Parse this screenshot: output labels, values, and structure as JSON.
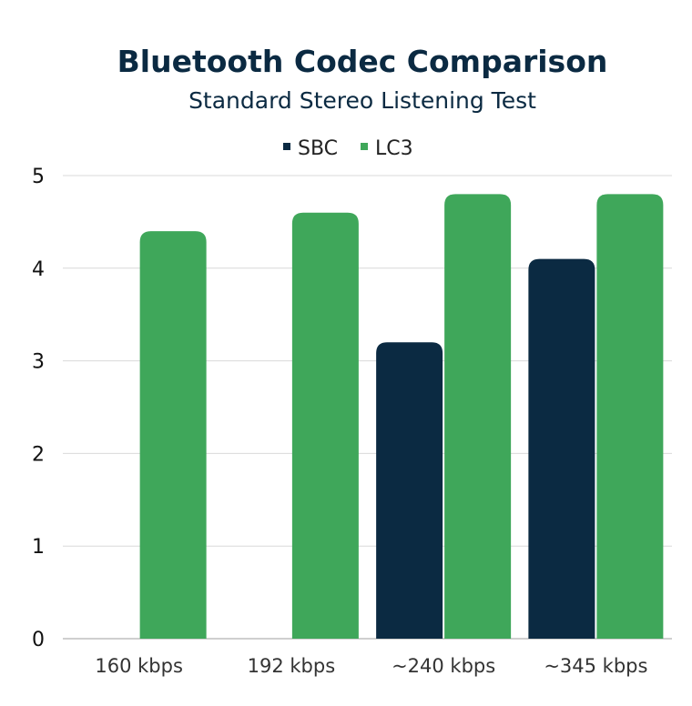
{
  "chart_data": {
    "type": "bar",
    "title": "Bluetooth Codec Comparison",
    "subtitle": "Standard Stereo Listening Test",
    "xlabel": "",
    "ylabel": "",
    "categories": [
      "160 kbps",
      "192 kbps",
      "~240 kbps",
      "~345 kbps"
    ],
    "series": [
      {
        "name": "SBC",
        "color": "#0b2a42",
        "values": [
          null,
          null,
          3.2,
          4.1
        ]
      },
      {
        "name": "LC3",
        "color": "#3fa75a",
        "values": [
          4.4,
          4.6,
          4.8,
          4.8
        ]
      }
    ],
    "ylim": [
      0,
      5
    ],
    "yticks": [
      0,
      1,
      2,
      3,
      4,
      5
    ],
    "grid": true,
    "legend_position": "top-center"
  }
}
